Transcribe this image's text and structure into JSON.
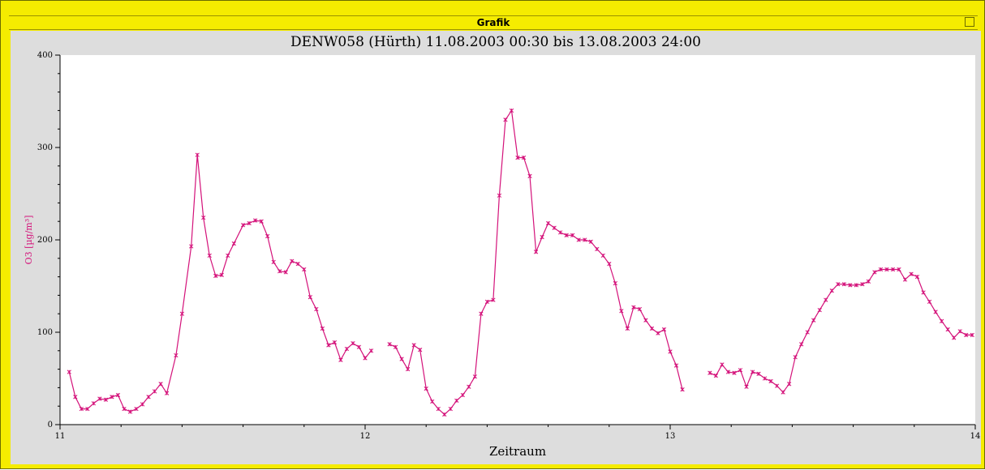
{
  "window": {
    "title": "Grafik"
  },
  "chart_data": {
    "type": "line",
    "title": "DENW058 (Hürth) 11.08.2003 00:30 bis 13.08.2003 24:00",
    "xlabel": "Zeitraum",
    "ylabel": "O3 [µg/m³]",
    "xlim": [
      11,
      14
    ],
    "ylim": [
      0,
      400
    ],
    "x_ticks": [
      11,
      12,
      13,
      14
    ],
    "y_ticks": [
      0,
      100,
      200,
      300,
      400
    ],
    "grid": false,
    "colors": {
      "series": "#d4127a",
      "axis": "#000000",
      "ylabel": "#d4127a"
    },
    "series": [
      {
        "segments": [
          [
            [
              11.03,
              57
            ],
            [
              11.05,
              30
            ],
            [
              11.07,
              17
            ],
            [
              11.09,
              17
            ],
            [
              11.11,
              23
            ],
            [
              11.13,
              28
            ],
            [
              11.15,
              27
            ],
            [
              11.17,
              30
            ],
            [
              11.19,
              32
            ],
            [
              11.21,
              17
            ],
            [
              11.23,
              14
            ],
            [
              11.25,
              17
            ],
            [
              11.27,
              22
            ],
            [
              11.29,
              30
            ],
            [
              11.31,
              36
            ],
            [
              11.33,
              44
            ],
            [
              11.35,
              34
            ],
            [
              11.38,
              75
            ],
            [
              11.4,
              120
            ],
            [
              11.43,
              193
            ],
            [
              11.45,
              292
            ],
            [
              11.47,
              224
            ],
            [
              11.49,
              183
            ],
            [
              11.51,
              161
            ],
            [
              11.53,
              162
            ],
            [
              11.55,
              183
            ],
            [
              11.57,
              196
            ],
            [
              11.6,
              216
            ],
            [
              11.62,
              218
            ],
            [
              11.64,
              221
            ],
            [
              11.66,
              220
            ],
            [
              11.68,
              204
            ],
            [
              11.7,
              176
            ],
            [
              11.72,
              166
            ],
            [
              11.74,
              165
            ],
            [
              11.76,
              177
            ],
            [
              11.78,
              174
            ],
            [
              11.8,
              168
            ],
            [
              11.82,
              138
            ],
            [
              11.84,
              125
            ],
            [
              11.86,
              104
            ],
            [
              11.88,
              86
            ],
            [
              11.9,
              89
            ],
            [
              11.92,
              70
            ],
            [
              11.94,
              82
            ],
            [
              11.96,
              88
            ],
            [
              11.98,
              84
            ],
            [
              12.0,
              72
            ],
            [
              12.02,
              80
            ]
          ],
          [
            [
              12.08,
              87
            ],
            [
              12.1,
              84
            ],
            [
              12.12,
              71
            ],
            [
              12.14,
              60
            ],
            [
              12.16,
              86
            ],
            [
              12.18,
              81
            ],
            [
              12.2,
              39
            ],
            [
              12.22,
              25
            ],
            [
              12.24,
              17
            ],
            [
              12.26,
              11
            ],
            [
              12.28,
              17
            ],
            [
              12.3,
              26
            ],
            [
              12.32,
              32
            ],
            [
              12.34,
              41
            ],
            [
              12.36,
              52
            ],
            [
              12.38,
              120
            ],
            [
              12.4,
              133
            ],
            [
              12.42,
              135
            ],
            [
              12.44,
              248
            ],
            [
              12.46,
              330
            ],
            [
              12.48,
              340
            ],
            [
              12.5,
              289
            ],
            [
              12.52,
              289
            ],
            [
              12.54,
              269
            ],
            [
              12.56,
              187
            ],
            [
              12.58,
              203
            ],
            [
              12.6,
              218
            ],
            [
              12.62,
              213
            ],
            [
              12.64,
              208
            ],
            [
              12.66,
              205
            ],
            [
              12.68,
              205
            ],
            [
              12.7,
              200
            ],
            [
              12.72,
              200
            ],
            [
              12.74,
              198
            ],
            [
              12.76,
              190
            ],
            [
              12.78,
              183
            ],
            [
              12.8,
              174
            ],
            [
              12.82,
              153
            ],
            [
              12.84,
              123
            ],
            [
              12.86,
              104
            ],
            [
              12.88,
              127
            ],
            [
              12.9,
              125
            ],
            [
              12.92,
              113
            ],
            [
              12.94,
              104
            ],
            [
              12.96,
              99
            ],
            [
              12.98,
              103
            ],
            [
              13.0,
              79
            ],
            [
              13.02,
              64
            ],
            [
              13.04,
              38
            ]
          ],
          [
            [
              13.13,
              56
            ],
            [
              13.15,
              53
            ],
            [
              13.17,
              65
            ],
            [
              13.19,
              57
            ],
            [
              13.21,
              56
            ],
            [
              13.23,
              59
            ],
            [
              13.25,
              41
            ],
            [
              13.27,
              57
            ],
            [
              13.29,
              55
            ],
            [
              13.31,
              50
            ],
            [
              13.33,
              47
            ],
            [
              13.35,
              42
            ],
            [
              13.37,
              35
            ],
            [
              13.39,
              44
            ],
            [
              13.41,
              73
            ],
            [
              13.43,
              87
            ],
            [
              13.45,
              100
            ],
            [
              13.47,
              113
            ],
            [
              13.49,
              124
            ],
            [
              13.51,
              135
            ],
            [
              13.53,
              145
            ],
            [
              13.55,
              152
            ],
            [
              13.57,
              152
            ],
            [
              13.59,
              151
            ],
            [
              13.61,
              151
            ],
            [
              13.63,
              152
            ],
            [
              13.65,
              155
            ],
            [
              13.67,
              165
            ],
            [
              13.69,
              168
            ],
            [
              13.71,
              168
            ],
            [
              13.73,
              168
            ],
            [
              13.75,
              168
            ],
            [
              13.77,
              157
            ],
            [
              13.79,
              163
            ],
            [
              13.81,
              160
            ],
            [
              13.83,
              143
            ],
            [
              13.85,
              133
            ],
            [
              13.87,
              122
            ],
            [
              13.89,
              112
            ],
            [
              13.91,
              103
            ],
            [
              13.93,
              94
            ],
            [
              13.95,
              101
            ],
            [
              13.97,
              97
            ],
            [
              13.99,
              97
            ]
          ]
        ]
      }
    ]
  }
}
